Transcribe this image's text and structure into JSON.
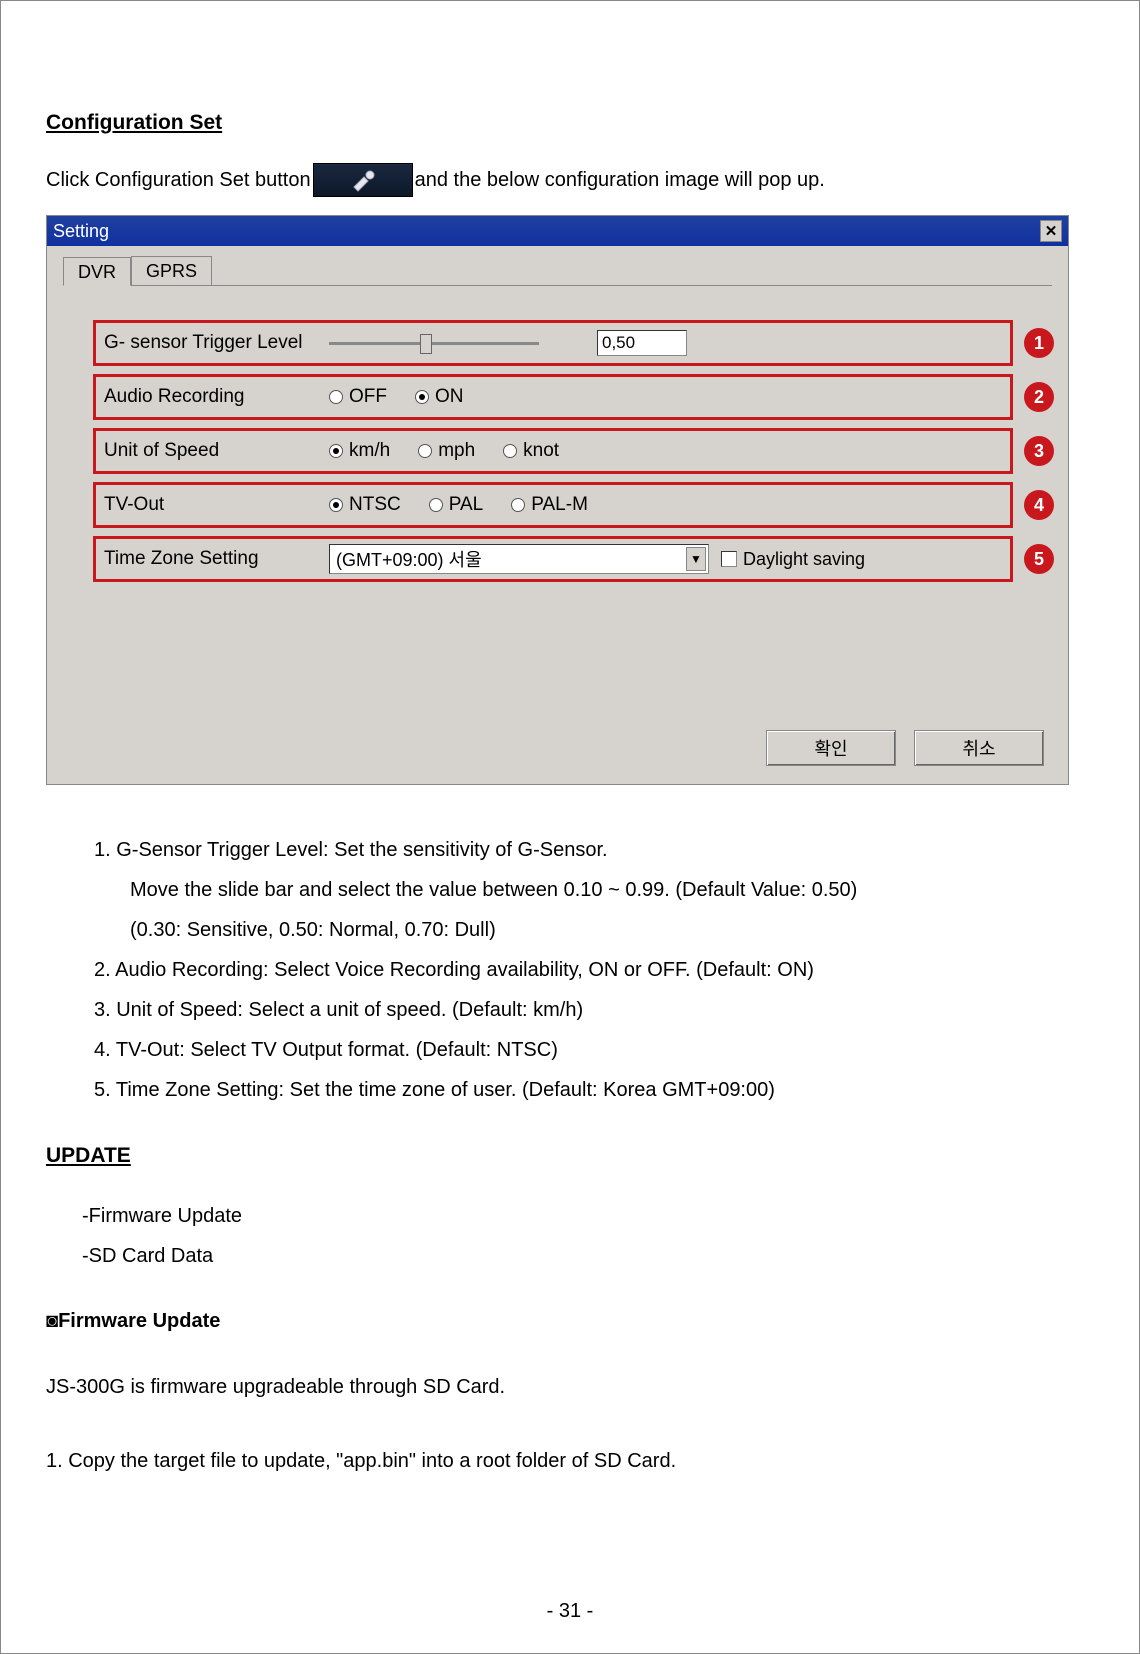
{
  "headings": {
    "config_set": "Configuration Set",
    "update": "UPDATE",
    "firmware_update": "◙Firmware Update"
  },
  "intro": {
    "before": "Click Configuration Set button",
    "after": "and the below configuration image will pop up."
  },
  "dialog": {
    "title": "Setting",
    "tabs": [
      "DVR",
      "GPRS"
    ],
    "active_tab": 0,
    "rows": {
      "gsensor": {
        "label": "G- sensor Trigger Level",
        "value": "0,50",
        "slider_pos": 0.46
      },
      "audio": {
        "label": "Audio Recording",
        "options": [
          "OFF",
          "ON"
        ],
        "selected": 1
      },
      "speed": {
        "label": "Unit of Speed",
        "options": [
          "km/h",
          "mph",
          "knot"
        ],
        "selected": 0
      },
      "tvout": {
        "label": "TV-Out",
        "options": [
          "NTSC",
          "PAL",
          "PAL-M"
        ],
        "selected": 0
      },
      "tz": {
        "label": "Time Zone Setting",
        "value": "(GMT+09:00) 서울",
        "daylight_label": "Daylight saving",
        "daylight_checked": false
      }
    },
    "buttons": {
      "ok": "확인",
      "cancel": "취소"
    }
  },
  "definitions": [
    {
      "num": "1.",
      "text": " G-Sensor Trigger Level: Set the sensitivity of G-Sensor.",
      "subs": [
        "Move the slide bar and select the value between 0.10 ~ 0.99. (Default Value: 0.50)",
        "(0.30: Sensitive, 0.50: Normal, 0.70: Dull)"
      ]
    },
    {
      "num": "2.",
      "text": "Audio Recording:   Select Voice Recording availability, ON or OFF.   (Default: ON)"
    },
    {
      "num": "3.",
      "text": "Unit of Speed: Select a unit of speed. (Default: km/h)"
    },
    {
      "num": "4.",
      "text": "TV-Out: Select TV Output format. (Default: NTSC)"
    },
    {
      "num": "5.",
      "text": "Time Zone Setting: Set the time zone of user. (Default: Korea GMT+09:00)"
    }
  ],
  "update_items": [
    "-Firmware Update",
    "-SD Card Data"
  ],
  "firmware_text": "JS-300G is firmware upgradeable through SD Card.",
  "firmware_step1": "1. Copy the target file to update, \"app.bin\" into a root folder of SD Card.",
  "page_number": "- 31 -"
}
